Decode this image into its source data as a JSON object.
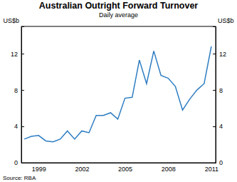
{
  "chart_data": {
    "type": "line",
    "title": "Australian Outright Forward Turnover",
    "subtitle": "Daily average",
    "y_label": "US$b",
    "source": "Source: RBA",
    "color": "#2e7dc2",
    "x": [
      1998.5,
      1999,
      1999.5,
      2000,
      2000.5,
      2001,
      2001.5,
      2002,
      2002.5,
      2003,
      2003.5,
      2004,
      2004.5,
      2005,
      2005.5,
      2006,
      2006.5,
      2007,
      2007.5,
      2008,
      2008.5,
      2009,
      2009.5,
      2010,
      2010.5,
      2011,
      2011.5
    ],
    "values": [
      2.6,
      2.9,
      3.0,
      2.4,
      2.3,
      2.6,
      3.5,
      2.6,
      3.5,
      3.3,
      5.2,
      5.2,
      5.5,
      4.8,
      7.1,
      7.2,
      11.3,
      8.7,
      12.3,
      9.6,
      9.3,
      8.4,
      5.8,
      7.0,
      8.0,
      8.7,
      12.8
    ],
    "xlim": [
      1998.3,
      2011.8
    ],
    "xticks": [
      {
        "value": 1999.5,
        "label": "1999"
      },
      {
        "value": 2002.5,
        "label": "2002"
      },
      {
        "value": 2005.5,
        "label": "2005"
      },
      {
        "value": 2008.5,
        "label": "2008"
      },
      {
        "value": 2011.5,
        "label": "2011"
      }
    ],
    "ylim": [
      0,
      15
    ],
    "yticks": [
      0,
      4,
      8,
      12
    ]
  }
}
